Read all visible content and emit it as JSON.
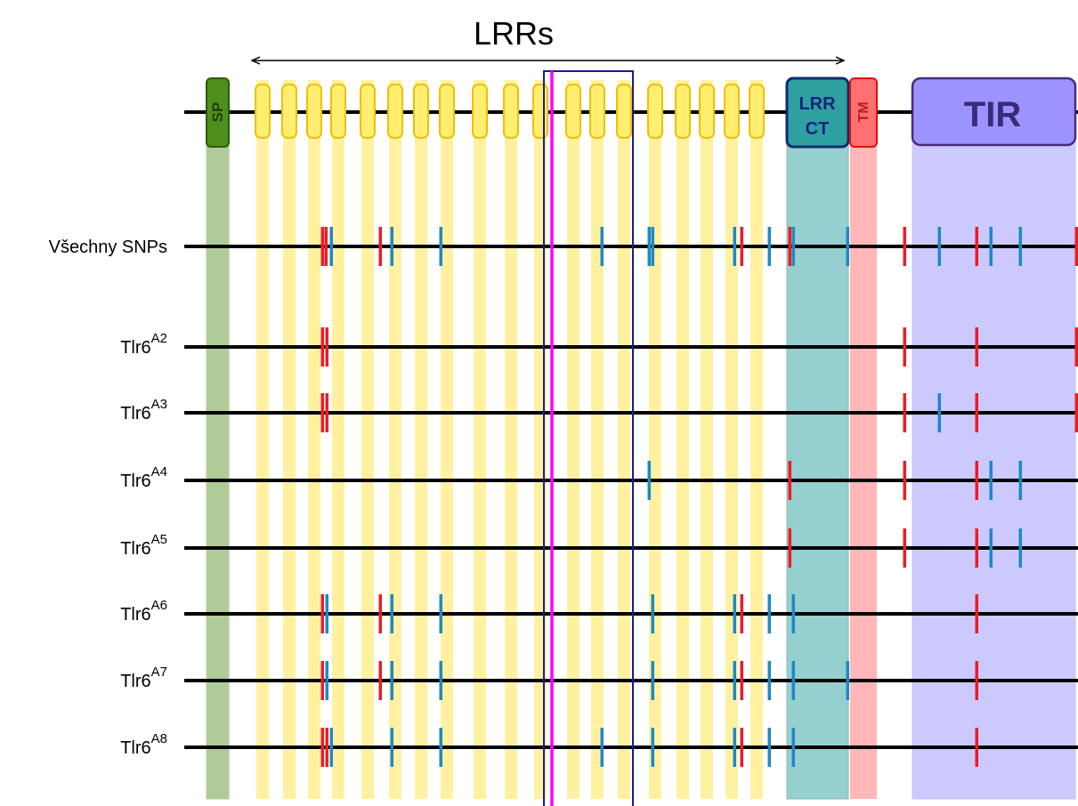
{
  "title": "LRRs",
  "domains": {
    "sp": {
      "label": "SP",
      "color": "#4f8f1c"
    },
    "lrr": {
      "color": "#ffe860"
    },
    "lrrct": {
      "line1": "LRR",
      "line2": "CT",
      "color": "#2fa0a0",
      "text_color": "#1a237e"
    },
    "tm": {
      "label": "TM",
      "color": "#ff7070",
      "text_color": "#b71c1c"
    },
    "tir": {
      "label": "TIR",
      "color": "#9b94ff",
      "text_color": "#3a2a7a"
    }
  },
  "colors": {
    "synonymous": "#1e88c8",
    "nonsynonymous": "#ee1c24",
    "highlight_box": "#1a1a9a",
    "highlight_line": "#ff00ff"
  },
  "rows": [
    {
      "label": "Všechny SNPs",
      "base": "",
      "sup": ""
    },
    {
      "label": "",
      "base": "Tlr6",
      "sup": "A2"
    },
    {
      "label": "",
      "base": "Tlr6",
      "sup": "A3"
    },
    {
      "label": "",
      "base": "Tlr6",
      "sup": "A4"
    },
    {
      "label": "",
      "base": "Tlr6",
      "sup": "A5"
    },
    {
      "label": "",
      "base": "Tlr6",
      "sup": "A6"
    },
    {
      "label": "",
      "base": "Tlr6",
      "sup": "A7"
    },
    {
      "label": "",
      "base": "Tlr6",
      "sup": "A8"
    }
  ]
}
